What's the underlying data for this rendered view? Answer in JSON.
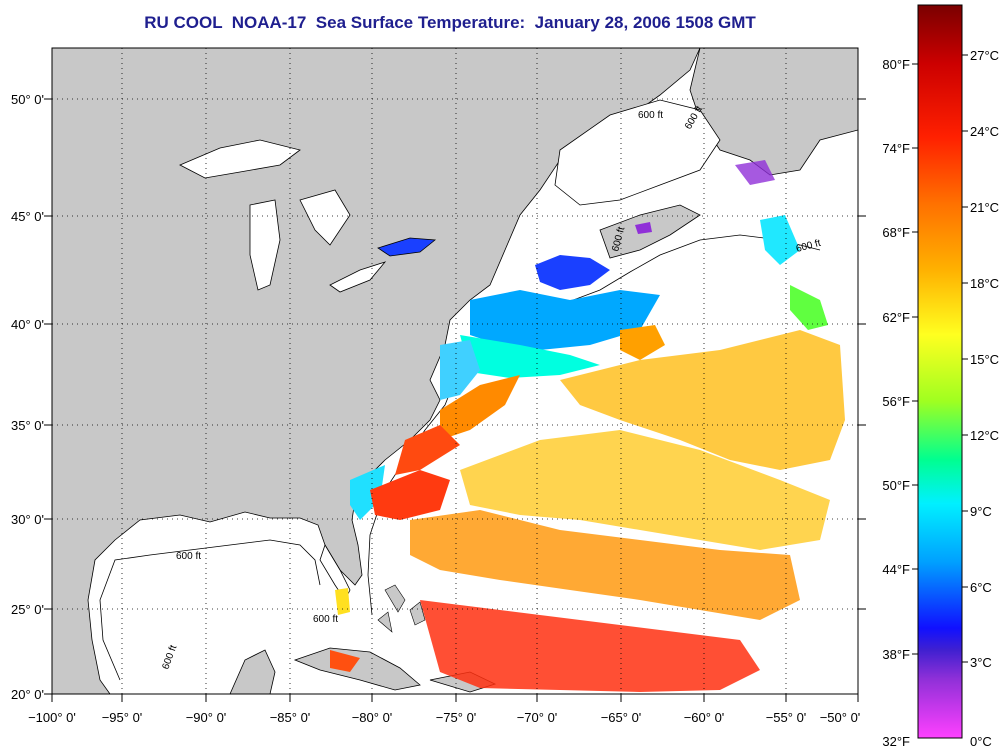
{
  "title": "RU COOL  NOAA-17  Sea Surface Temperature:  January 28, 2006 1508 GMT",
  "map": {
    "lon_labels": [
      "−100° 0'",
      "−95° 0'",
      "−90° 0'",
      "−85° 0'",
      "−80° 0'",
      "−75° 0'",
      "−70° 0'",
      "−65° 0'",
      "−60° 0'",
      "−55° 0'",
      "−50° 0'"
    ],
    "lat_labels": [
      "50° 0'",
      "45° 0'",
      "40° 0'",
      "35° 0'",
      "30° 0'",
      "25° 0'",
      "20° 0'"
    ],
    "contour_labels": [
      "600 ft",
      "600 ft",
      "600 ft",
      "600 ft",
      "600 ft",
      "600 ft",
      "600 ft"
    ],
    "land_color": "#c8c8c8",
    "ocean_color": "#ffffff"
  },
  "colorbar": {
    "fahrenheit": [
      "80°F",
      "74°F",
      "68°F",
      "62°F",
      "56°F",
      "50°F",
      "44°F",
      "38°F",
      "32°F"
    ],
    "celsius": [
      "27°C",
      "24°C",
      "21°C",
      "18°C",
      "15°C",
      "12°C",
      "9°C",
      "6°C",
      "3°C",
      "0°C"
    ],
    "colors": [
      "#8b0000",
      "#ff0000",
      "#ff6a00",
      "#ffa500",
      "#ffff00",
      "#7cfc00",
      "#00ffaa",
      "#00ffff",
      "#00a0ff",
      "#0000ff",
      "#7b2cd6",
      "#ff3cff"
    ]
  }
}
